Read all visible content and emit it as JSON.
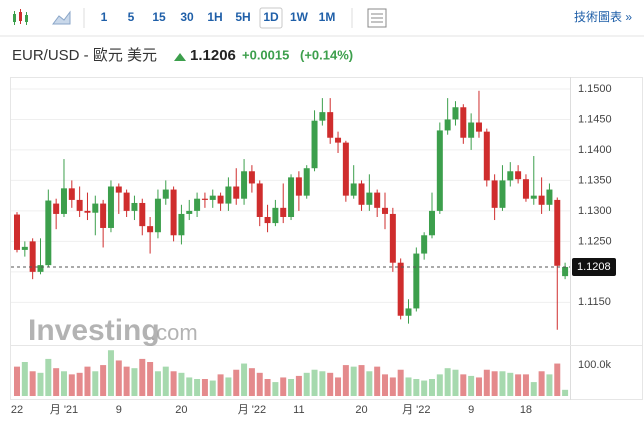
{
  "toolbar": {
    "intervals": [
      "1",
      "5",
      "15",
      "30",
      "1H",
      "5H",
      "1D",
      "1W",
      "1M"
    ],
    "selected": 6,
    "link": "技術圖表 »"
  },
  "header": {
    "pair": "EUR/USD - 歐元 美元",
    "price": "1.1206",
    "change": "+0.0015",
    "change_pct": "(+0.14%)"
  },
  "watermark": {
    "brand": "Investing",
    "suffix": ".com"
  },
  "chart_data": {
    "type": "candlestick",
    "categories": [
      "22",
      null,
      null,
      null,
      null,
      null,
      "月 '21",
      null,
      null,
      null,
      null,
      null,
      null,
      "9",
      null,
      null,
      null,
      null,
      null,
      null,
      null,
      "20",
      null,
      null,
      null,
      null,
      null,
      null,
      null,
      null,
      "月 '22",
      null,
      null,
      null,
      null,
      null,
      "11",
      null,
      null,
      null,
      null,
      null,
      null,
      null,
      "20",
      null,
      null,
      null,
      null,
      null,
      null,
      "月 '22",
      null,
      null,
      null,
      null,
      null,
      null,
      "9",
      null,
      null,
      null,
      null,
      null,
      null,
      "18",
      null,
      null,
      null,
      null,
      null
    ],
    "open": [
      1.1294,
      1.1236,
      1.125,
      1.12,
      1.1211,
      1.1312,
      1.1295,
      1.1337,
      1.1318,
      1.13,
      1.1297,
      1.1312,
      1.1272,
      1.134,
      1.133,
      1.13,
      1.1313,
      1.1275,
      1.1265,
      1.132,
      1.1335,
      1.126,
      1.1295,
      1.13,
      1.132,
      1.1318,
      1.1325,
      1.1312,
      1.134,
      1.132,
      1.1365,
      1.1345,
      1.129,
      1.128,
      1.1305,
      1.129,
      1.1355,
      1.1325,
      1.137,
      1.1448,
      1.1462,
      1.142,
      1.1412,
      1.1325,
      1.1345,
      1.131,
      1.133,
      1.1305,
      1.1295,
      1.1215,
      1.1128,
      1.114,
      1.123,
      1.126,
      1.13,
      1.1432,
      1.145,
      1.147,
      1.142,
      1.1445,
      1.143,
      1.135,
      1.1305,
      1.135,
      1.1365,
      1.1352,
      1.132,
      1.1325,
      1.131,
      1.1318,
      1.1193
    ],
    "high": [
      1.1298,
      1.125,
      1.1255,
      1.1255,
      1.1335,
      1.132,
      1.1385,
      1.135,
      1.134,
      1.133,
      1.1325,
      1.1318,
      1.135,
      1.1345,
      1.1335,
      1.1325,
      1.132,
      1.129,
      1.1335,
      1.135,
      1.134,
      1.131,
      1.1318,
      1.133,
      1.133,
      1.1335,
      1.133,
      1.1355,
      1.137,
      1.1385,
      1.1375,
      1.135,
      1.131,
      1.1318,
      1.1345,
      1.136,
      1.1365,
      1.1375,
      1.1465,
      1.1485,
      1.1485,
      1.143,
      1.1415,
      1.1375,
      1.135,
      1.136,
      1.1335,
      1.133,
      1.1305,
      1.1222,
      1.1155,
      1.124,
      1.1265,
      1.133,
      1.1445,
      1.1485,
      1.148,
      1.1475,
      1.146,
      1.1497,
      1.1435,
      1.136,
      1.1375,
      1.138,
      1.1375,
      1.136,
      1.139,
      1.1355,
      1.1345,
      1.1322,
      1.1215
    ],
    "low": [
      1.1232,
      1.1225,
      1.1188,
      1.1196,
      1.1208,
      1.127,
      1.129,
      1.1305,
      1.129,
      1.1285,
      1.126,
      1.124,
      1.1265,
      1.1295,
      1.129,
      1.1285,
      1.126,
      1.123,
      1.1255,
      1.131,
      1.125,
      1.1245,
      1.1285,
      1.129,
      1.1305,
      1.1305,
      1.13,
      1.13,
      1.131,
      1.131,
      1.133,
      1.1275,
      1.1265,
      1.1275,
      1.128,
      1.1285,
      1.13,
      1.132,
      1.1365,
      1.144,
      1.141,
      1.1395,
      1.1315,
      1.132,
      1.13,
      1.13,
      1.129,
      1.127,
      1.12,
      1.1122,
      1.1115,
      1.1135,
      1.122,
      1.1255,
      1.1295,
      1.1425,
      1.144,
      1.141,
      1.14,
      1.142,
      1.134,
      1.1285,
      1.13,
      1.134,
      1.1345,
      1.1315,
      1.131,
      1.1295,
      1.13,
      1.1105,
      1.1188
    ],
    "close": [
      1.1236,
      1.1241,
      1.12,
      1.1211,
      1.1317,
      1.1295,
      1.1337,
      1.1318,
      1.13,
      1.1297,
      1.1312,
      1.1272,
      1.134,
      1.133,
      1.13,
      1.1313,
      1.1275,
      1.1265,
      1.132,
      1.1335,
      1.126,
      1.1295,
      1.13,
      1.132,
      1.1318,
      1.1325,
      1.1312,
      1.134,
      1.132,
      1.1365,
      1.1345,
      1.129,
      1.128,
      1.1305,
      1.129,
      1.1355,
      1.1325,
      1.137,
      1.1448,
      1.1462,
      1.142,
      1.1412,
      1.1325,
      1.1345,
      1.131,
      1.133,
      1.1305,
      1.1295,
      1.1215,
      1.1128,
      1.114,
      1.123,
      1.126,
      1.13,
      1.1432,
      1.145,
      1.147,
      1.142,
      1.1445,
      1.143,
      1.135,
      1.1305,
      1.135,
      1.1365,
      1.1352,
      1.132,
      1.1325,
      1.131,
      1.1335,
      1.121,
      1.1208
    ],
    "volume": [
      95000,
      110000,
      80000,
      75000,
      120000,
      90000,
      80000,
      70000,
      75000,
      95000,
      80000,
      100000,
      148000,
      115000,
      95000,
      90000,
      120000,
      110000,
      80000,
      95000,
      80000,
      75000,
      60000,
      55000,
      55000,
      50000,
      70000,
      60000,
      85000,
      105000,
      90000,
      75000,
      55000,
      45000,
      60000,
      55000,
      65000,
      75000,
      85000,
      80000,
      75000,
      60000,
      100000,
      95000,
      100000,
      80000,
      95000,
      70000,
      60000,
      85000,
      60000,
      55000,
      50000,
      55000,
      70000,
      90000,
      85000,
      70000,
      65000,
      60000,
      85000,
      80000,
      80000,
      75000,
      70000,
      70000,
      45000,
      80000,
      70000,
      105000,
      20000
    ],
    "up_color": "#3c9f4c",
    "down_color": "#cf2d2d",
    "up_volume_color": "#a6d9ae",
    "down_volume_color": "#e48a8c",
    "ylim": [
      1.108,
      1.1518
    ],
    "yticks": [
      {
        "value": 1.115,
        "label": "1.1150"
      },
      {
        "value": 1.12,
        "label": "1.1200"
      },
      {
        "value": 1.125,
        "label": "1.1250"
      },
      {
        "value": 1.13,
        "label": "1.1300"
      },
      {
        "value": 1.135,
        "label": "1.1350"
      },
      {
        "value": 1.14,
        "label": "1.1400"
      },
      {
        "value": 1.145,
        "label": "1.1450"
      },
      {
        "value": 1.15,
        "label": "1.1500"
      }
    ],
    "vlim": [
      0,
      165000
    ],
    "vticks": [
      {
        "value": 100000,
        "label": "100.0k"
      }
    ],
    "last_price": {
      "value": 1.1208,
      "label": "1.1208"
    },
    "grid": true
  }
}
